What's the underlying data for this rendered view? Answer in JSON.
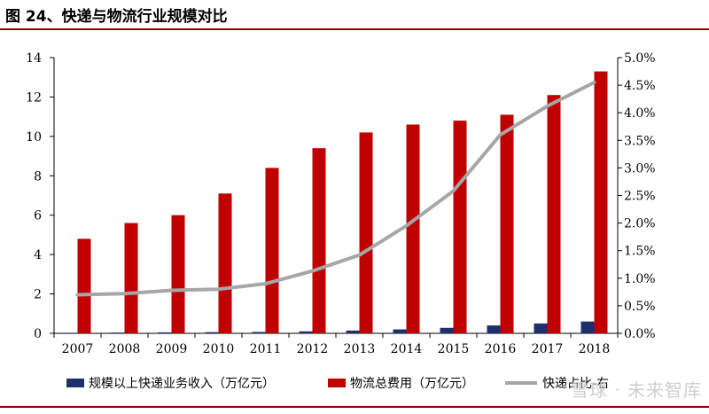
{
  "figure": {
    "title": "图 24、快递与物流行业规模对比",
    "watermark": "雪球 · 未来智库"
  },
  "chart_data": {
    "type": "bar",
    "categories": [
      "2007",
      "2008",
      "2009",
      "2010",
      "2011",
      "2012",
      "2013",
      "2014",
      "2015",
      "2016",
      "2017",
      "2018"
    ],
    "series": [
      {
        "name": "规模以上快递业务收入（万亿元）",
        "kind": "bar",
        "axis": "left",
        "color": "#1f2f6b",
        "values": [
          0.03,
          0.04,
          0.05,
          0.06,
          0.07,
          0.1,
          0.14,
          0.2,
          0.28,
          0.4,
          0.5,
          0.6
        ]
      },
      {
        "name": "物流总费用（万亿元）",
        "kind": "bar",
        "axis": "left",
        "color": "#c00000",
        "values": [
          4.8,
          5.6,
          6.0,
          7.1,
          8.4,
          9.4,
          10.2,
          10.6,
          10.8,
          11.1,
          12.1,
          13.3
        ]
      },
      {
        "name": "快递占比-右",
        "kind": "line",
        "axis": "right",
        "color": "#a6a6a6",
        "values": [
          0.007,
          0.0072,
          0.0078,
          0.008,
          0.009,
          0.0113,
          0.0142,
          0.0195,
          0.0258,
          0.036,
          0.0412,
          0.0455
        ]
      }
    ],
    "y_left": {
      "ylim": [
        0,
        14
      ],
      "ticks": [
        "0",
        "2",
        "4",
        "6",
        "8",
        "10",
        "12",
        "14"
      ]
    },
    "y_right": {
      "ylim": [
        0,
        0.05
      ],
      "ticks": [
        "0.0%",
        "0.5%",
        "1.0%",
        "1.5%",
        "2.0%",
        "2.5%",
        "3.0%",
        "3.5%",
        "4.0%",
        "4.5%",
        "5.0%"
      ]
    },
    "legend": {
      "placement": "bottom"
    },
    "grid": false
  }
}
